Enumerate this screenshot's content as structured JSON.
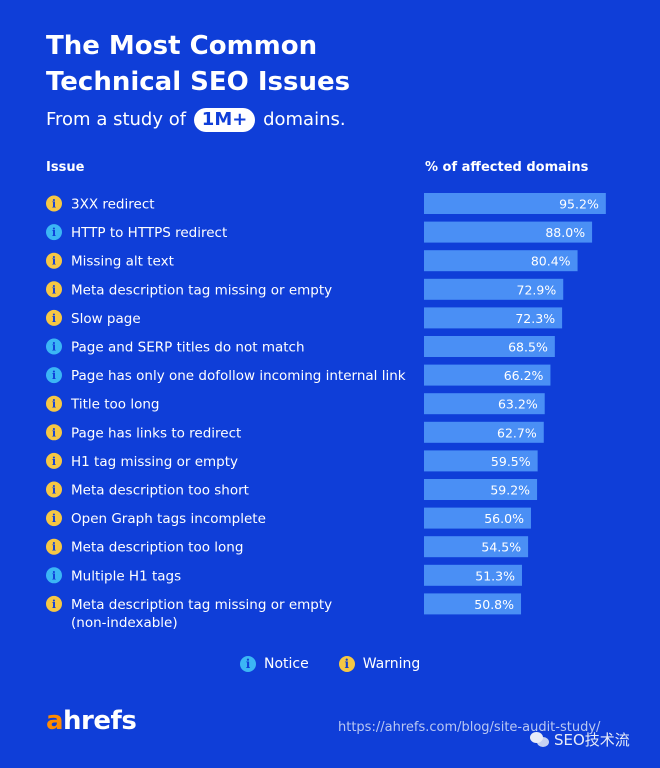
{
  "title_line1": "The Most Common",
  "title_line2": "Technical SEO Issues",
  "subtitle_pre": "From a study of",
  "subtitle_pill": "1M+",
  "subtitle_post": "domains.",
  "header_issue": "Issue",
  "header_percent": "% of affected domains",
  "colors": {
    "background": "#0f3ed8",
    "bar": "#4a8ff5",
    "notice": "#3bb6f5",
    "warning": "#f6c744",
    "logo_accent": "#ff8a00"
  },
  "chart_data": {
    "type": "bar",
    "orientation": "horizontal",
    "categories": [
      "3XX redirect",
      "HTTP to HTTPS redirect",
      "Missing alt text",
      "Meta description tag missing or empty",
      "Slow page",
      "Page and SERP titles do not match",
      "Page has only one dofollow incoming internal link",
      "Title too long",
      "Page has links to redirect",
      "H1 tag missing or empty",
      "Meta description too short",
      "Open Graph tags incomplete",
      "Meta description too long",
      "Multiple H1 tags",
      "Meta description tag missing or empty (non-indexable)"
    ],
    "values": [
      95.2,
      88.0,
      80.4,
      72.9,
      72.3,
      68.5,
      66.2,
      63.2,
      62.7,
      59.5,
      59.2,
      56.0,
      54.5,
      51.3,
      50.8
    ],
    "value_labels": [
      "95.2%",
      "88.0%",
      "80.4%",
      "72.9%",
      "72.3%",
      "68.5%",
      "66.2%",
      "63.2%",
      "62.7%",
      "59.5%",
      "59.2%",
      "56.0%",
      "54.5%",
      "51.3%",
      "50.8%"
    ],
    "severity": [
      "warning",
      "notice",
      "warning",
      "warning",
      "warning",
      "notice",
      "notice",
      "warning",
      "warning",
      "warning",
      "warning",
      "warning",
      "warning",
      "notice",
      "warning"
    ],
    "xlim": [
      0,
      100
    ],
    "legend_placement": "bottom-center"
  },
  "legend": {
    "notice_label": "Notice",
    "warning_label": "Warning",
    "icon_glyph": "i"
  },
  "footer": {
    "logo_a": "a",
    "logo_rest": "hrefs",
    "url": "https://ahrefs.com/blog/site-audit-study/",
    "watermark": "SEO技术流"
  }
}
